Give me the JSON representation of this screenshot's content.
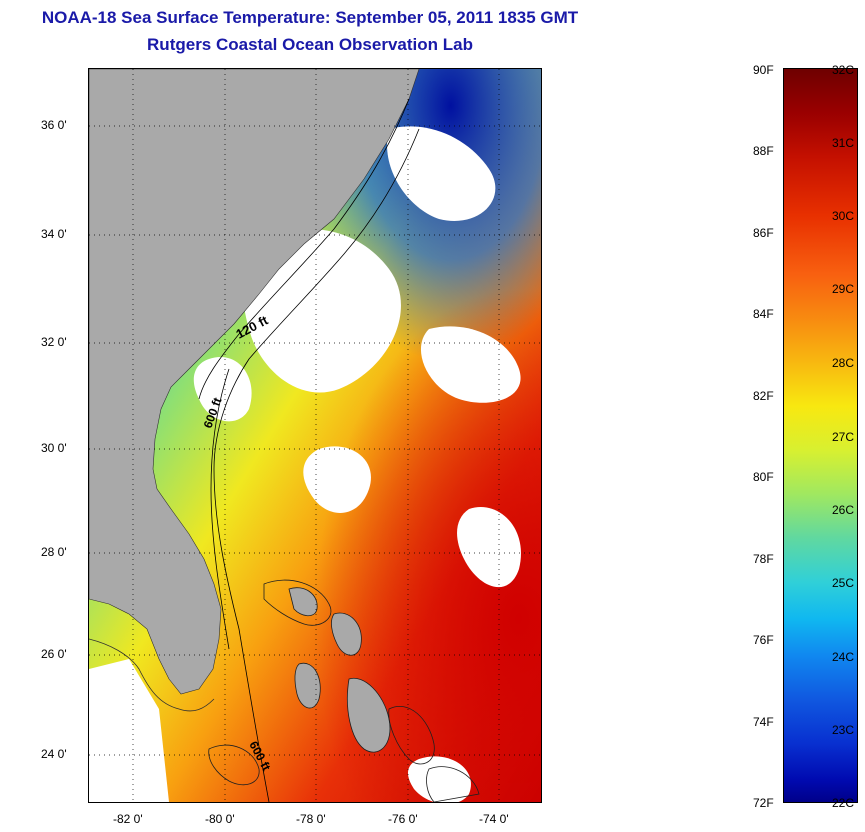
{
  "title": {
    "line1": "NOAA-18 Sea Surface Temperature:  September 05, 2011 1835 GMT",
    "line2": "Rutgers Coastal Ocean Observation Lab"
  },
  "map": {
    "lat_labels": [
      "36 0'",
      "34 0'",
      "32 0'",
      "30 0'",
      "28 0'",
      "26 0'",
      "24 0'"
    ],
    "lon_labels": [
      "-82 0'",
      "-80 0'",
      "-78 0'",
      "-76 0'",
      "-74 0'"
    ],
    "isobath_labels": [
      "120 ft",
      "600 ft",
      "600 ft"
    ],
    "colors": {
      "land": "#a9a9a9",
      "cloud": "#ffffff",
      "grid": "#000000"
    }
  },
  "colorbar": {
    "fahrenheit_labels": [
      "90F",
      "88F",
      "86F",
      "84F",
      "82F",
      "80F",
      "78F",
      "76F",
      "74F",
      "72F"
    ],
    "celsius_labels": [
      "32C",
      "31C",
      "30C",
      "29C",
      "28C",
      "27C",
      "26C",
      "25C",
      "24C",
      "23C",
      "22C"
    ],
    "range_f": [
      72,
      90
    ],
    "range_c": [
      22,
      32
    ]
  }
}
